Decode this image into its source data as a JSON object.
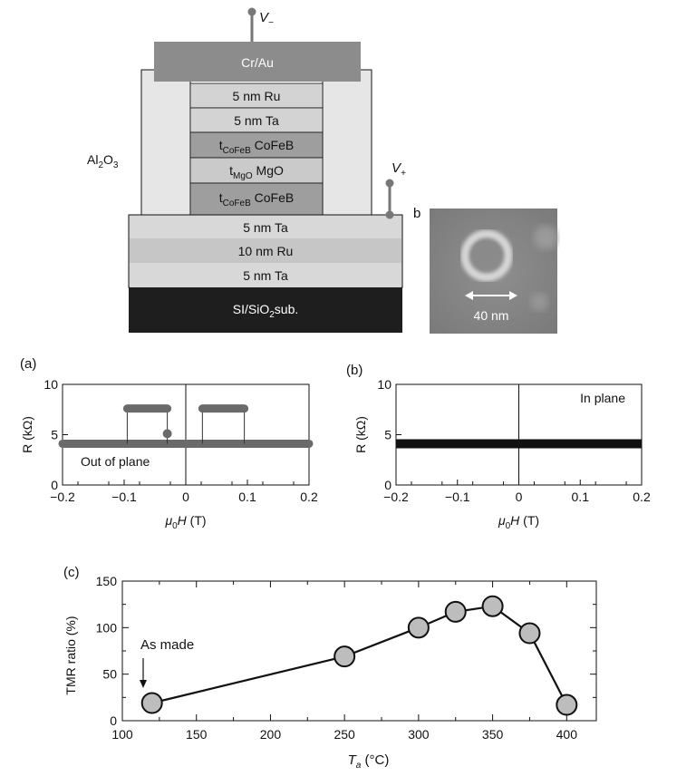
{
  "stack": {
    "v_minus_label": "V",
    "v_minus_sub": "−",
    "v_plus_label": "V",
    "v_plus_sub": "+",
    "electrode_label": "Cr/Au",
    "insulator_label_pre": "Al",
    "insulator_label_sub1": "2",
    "insulator_label_mid": "O",
    "insulator_label_sub2": "3",
    "pillar_layers": [
      {
        "text": "5 nm Ru"
      },
      {
        "text": "5 nm Ta"
      },
      {
        "pre": "t",
        "sub": "CoFeB",
        "post": " CoFeB"
      },
      {
        "pre": "t",
        "sub": "MgO",
        "post": " MgO"
      },
      {
        "pre": "t",
        "sub": "CoFeB",
        "post": " CoFeB"
      }
    ],
    "bottom_layers": [
      "5 nm Ta",
      "10 nm Ru",
      "5 nm Ta"
    ],
    "substrate_pre": "SI/SiO",
    "substrate_sub": "2",
    "substrate_post": "sub.",
    "point_label": "b",
    "colors": {
      "electrode": "#8c8c8c",
      "insulator": "#e6e6e6",
      "ru_ta": "#d3d3d3",
      "cofeb": "#9e9e9e",
      "mgo": "#cacaca",
      "substrate": "#1e1e1e"
    }
  },
  "micrograph": {
    "scale_label": "40 nm"
  },
  "panels": {
    "a_label": "(a)",
    "b_label": "(b)",
    "c_label": "(c)"
  },
  "chart_data": [
    {
      "id": "a",
      "type": "line",
      "ylabel": "R (kΩ)",
      "xlabel_mu": "μ",
      "xlabel_sub": "0",
      "xlabel_H": "H",
      "xlabel_unit": " (T)",
      "xlim": [
        -0.2,
        0.2
      ],
      "ylim": [
        0,
        10
      ],
      "xticks": [
        "−0.2",
        "−0.1",
        "0",
        "0.1",
        "0.2"
      ],
      "xtick_values": [
        -0.2,
        -0.1,
        0,
        0.1,
        0.2
      ],
      "yticks": [
        "0",
        "5",
        "10"
      ],
      "ytick_values": [
        0,
        5,
        10
      ],
      "annotation": "Out of plane",
      "low_state": {
        "x": [
          -0.2,
          0.2
        ],
        "y": 4.1
      },
      "high_state_loops": [
        {
          "x": [
            -0.095,
            -0.03
          ],
          "y": 7.6
        },
        {
          "x": [
            0.027,
            0.095
          ],
          "y": 7.6
        }
      ],
      "dot": {
        "x": -0.03,
        "y": 5.1
      }
    },
    {
      "id": "b",
      "type": "line",
      "ylabel": "R (kΩ)",
      "xlabel_mu": "μ",
      "xlabel_sub": "0",
      "xlabel_H": "H",
      "xlabel_unit": " (T)",
      "xlim": [
        -0.2,
        0.2
      ],
      "ylim": [
        0,
        10
      ],
      "xticks": [
        "−0.2",
        "−0.1",
        "0",
        "0.1",
        "0.2"
      ],
      "xtick_values": [
        -0.2,
        -0.1,
        0,
        0.1,
        0.2
      ],
      "yticks": [
        "0",
        "5",
        "10"
      ],
      "ytick_values": [
        0,
        5,
        10
      ],
      "annotation": "In plane",
      "low_state": {
        "x": [
          -0.2,
          0.2
        ],
        "y": 4.1
      }
    },
    {
      "id": "c",
      "type": "line",
      "ylabel": "TMR ratio (%)",
      "xlabel_T": "T",
      "xlabel_sub": "a",
      "xlabel_unit": " (°C)",
      "xlim": [
        100,
        420
      ],
      "ylim": [
        0,
        150
      ],
      "xticks": [
        "100",
        "150",
        "200",
        "250",
        "300",
        "350",
        "400"
      ],
      "xtick_values": [
        100,
        150,
        200,
        250,
        300,
        350,
        400
      ],
      "yticks": [
        "0",
        "50",
        "100",
        "150"
      ],
      "ytick_values": [
        0,
        50,
        100,
        150
      ],
      "annotation": "As made",
      "x": [
        120,
        250,
        300,
        325,
        350,
        375,
        400
      ],
      "y": [
        19,
        69,
        100,
        117,
        123,
        94,
        17
      ]
    }
  ]
}
